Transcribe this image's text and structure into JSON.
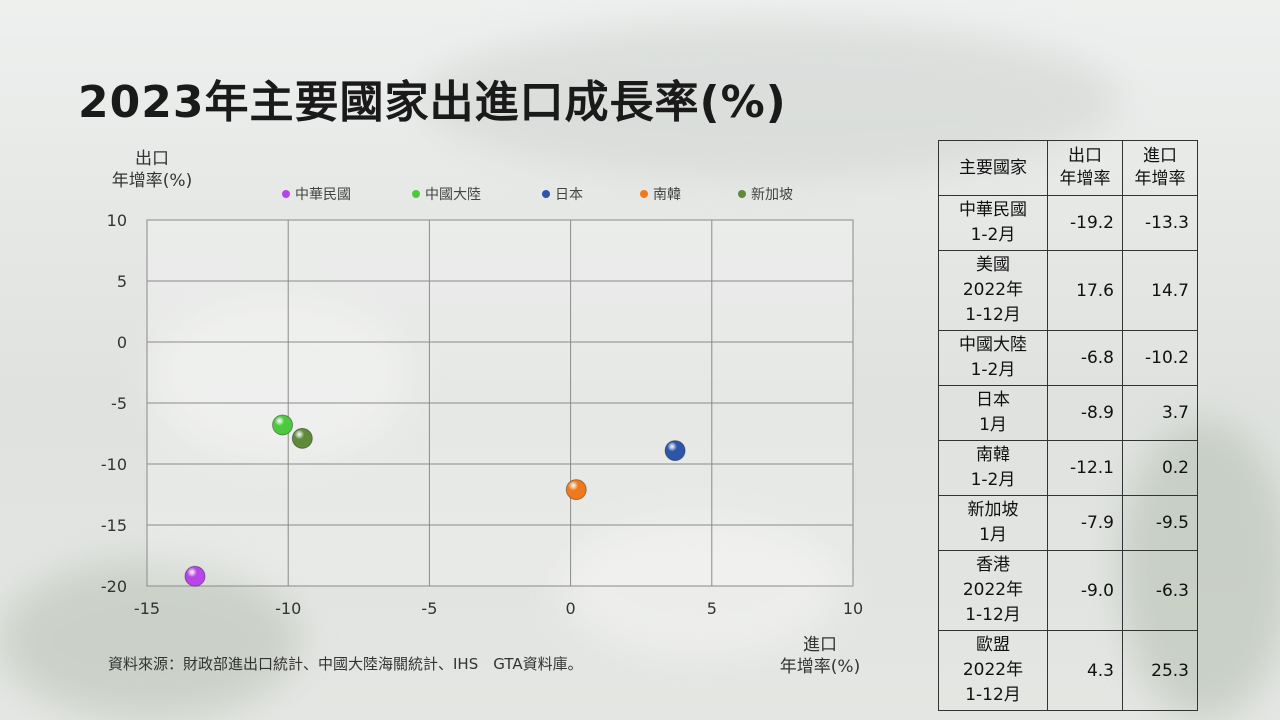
{
  "title": "2023年主要國家出進口成長率(%)",
  "y_axis_label": [
    "出口",
    "年增率(%)"
  ],
  "x_axis_label": [
    "進口",
    "年增率(%)"
  ],
  "source": "資料來源：財政部進出口統計、中國大陸海關統計、IHS　GTA資料庫。",
  "colors": {
    "中華民國": "#b845e8",
    "中國大陸": "#4cc93f",
    "日本": "#2d55a8",
    "南韓": "#ef7a1e",
    "新加坡": "#5e8a3a"
  },
  "chart_data": {
    "type": "scatter",
    "xlim": [
      -15,
      10
    ],
    "ylim": [
      -20,
      10
    ],
    "x_ticks": [
      "-15",
      "-10",
      "-5",
      "0",
      "5",
      "10"
    ],
    "y_ticks": [
      "10",
      "5",
      "0",
      "-5",
      "-10",
      "-15",
      "-20"
    ],
    "grid": true,
    "legend_position": "top",
    "series": [
      {
        "name": "中華民國",
        "x": -13.3,
        "y": -19.2
      },
      {
        "name": "中國大陸",
        "x": -10.2,
        "y": -6.8
      },
      {
        "name": "日本",
        "x": 3.7,
        "y": -8.9
      },
      {
        "name": "南韓",
        "x": 0.2,
        "y": -12.1
      },
      {
        "name": "新加坡",
        "x": -9.5,
        "y": -7.9
      }
    ]
  },
  "table": {
    "headers": [
      "主要國家",
      "出口\n年增率",
      "進口\n年增率"
    ],
    "rows": [
      {
        "name": "中華民國\n1-2月",
        "export": "-19.2",
        "import": "-13.3"
      },
      {
        "name": "美國\n2022年\n1-12月",
        "export": "17.6",
        "import": "14.7"
      },
      {
        "name": "中國大陸\n1-2月",
        "export": "-6.8",
        "import": "-10.2"
      },
      {
        "name": "日本\n1月",
        "export": "-8.9",
        "import": "3.7"
      },
      {
        "name": "南韓\n1-2月",
        "export": "-12.1",
        "import": "0.2"
      },
      {
        "name": "新加坡\n1月",
        "export": "-7.9",
        "import": "-9.5"
      },
      {
        "name": "香港\n2022年\n1-12月",
        "export": "-9.0",
        "import": "-6.3"
      },
      {
        "name": "歐盟\n2022年\n1-12月",
        "export": "4.3",
        "import": "25.3"
      }
    ]
  }
}
